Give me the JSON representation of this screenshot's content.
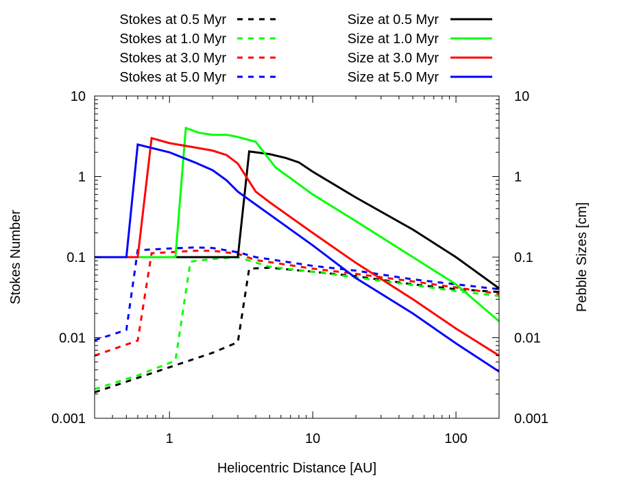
{
  "chart_data": {
    "type": "line",
    "title": "",
    "xlabel": "Heliocentric Distance [AU]",
    "ylabel": "Stokes Number",
    "y2label": "Pebble Sizes [cm]",
    "xscale": "log",
    "yscale": "log",
    "xlim": [
      0.3,
      200
    ],
    "ylim": [
      0.001,
      10
    ],
    "grid": false,
    "legend_position": "top",
    "x_ticks": [
      {
        "value": 1,
        "label": "1"
      },
      {
        "value": 10,
        "label": "10"
      },
      {
        "value": 100,
        "label": "100"
      }
    ],
    "y_ticks": [
      {
        "value": 0.001,
        "label": "0.001"
      },
      {
        "value": 0.01,
        "label": "0.01"
      },
      {
        "value": 0.1,
        "label": "0.1"
      },
      {
        "value": 1,
        "label": "1"
      },
      {
        "value": 10,
        "label": "10"
      }
    ],
    "series": [
      {
        "name": "Stokes at 0.5 Myr",
        "color": "#000000",
        "dash": true,
        "points": [
          [
            0.3,
            0.0021
          ],
          [
            1,
            0.0043
          ],
          [
            2,
            0.0065
          ],
          [
            3,
            0.0088
          ],
          [
            3.6,
            0.072
          ],
          [
            5,
            0.074
          ],
          [
            10,
            0.066
          ],
          [
            20,
            0.058
          ],
          [
            50,
            0.046
          ],
          [
            100,
            0.04
          ],
          [
            200,
            0.037
          ]
        ]
      },
      {
        "name": "Stokes at 1.0 Myr",
        "color": "#00ff00",
        "dash": true,
        "points": [
          [
            0.3,
            0.0023
          ],
          [
            0.6,
            0.0034
          ],
          [
            1.1,
            0.0052
          ],
          [
            1.4,
            0.088
          ],
          [
            2,
            0.095
          ],
          [
            3,
            0.1
          ],
          [
            5,
            0.076
          ],
          [
            10,
            0.066
          ],
          [
            20,
            0.056
          ],
          [
            50,
            0.045
          ],
          [
            100,
            0.038
          ],
          [
            200,
            0.033
          ]
        ]
      },
      {
        "name": "Stokes at 3.0 Myr",
        "color": "#ff0000",
        "dash": true,
        "points": [
          [
            0.3,
            0.006
          ],
          [
            0.6,
            0.0092
          ],
          [
            0.75,
            0.112
          ],
          [
            1,
            0.115
          ],
          [
            1.5,
            0.12
          ],
          [
            2,
            0.12
          ],
          [
            3,
            0.11
          ],
          [
            4,
            0.092
          ],
          [
            10,
            0.072
          ],
          [
            20,
            0.062
          ],
          [
            50,
            0.05
          ],
          [
            100,
            0.042
          ],
          [
            200,
            0.035
          ]
        ]
      },
      {
        "name": "Stokes at 5.0 Myr",
        "color": "#0000ff",
        "dash": true,
        "points": [
          [
            0.3,
            0.0093
          ],
          [
            0.5,
            0.0125
          ],
          [
            0.6,
            0.122
          ],
          [
            1,
            0.128
          ],
          [
            1.5,
            0.132
          ],
          [
            2,
            0.13
          ],
          [
            3,
            0.115
          ],
          [
            4,
            0.1
          ],
          [
            10,
            0.078
          ],
          [
            20,
            0.068
          ],
          [
            50,
            0.053
          ],
          [
            100,
            0.046
          ],
          [
            200,
            0.04
          ]
        ]
      },
      {
        "name": "Size at 0.5 Myr",
        "color": "#000000",
        "dash": false,
        "points": [
          [
            0.3,
            0.1
          ],
          [
            3,
            0.1
          ],
          [
            3.6,
            2.05
          ],
          [
            5,
            1.9
          ],
          [
            6.5,
            1.7
          ],
          [
            8,
            1.5
          ],
          [
            10,
            1.15
          ],
          [
            20,
            0.55
          ],
          [
            50,
            0.22
          ],
          [
            100,
            0.1
          ],
          [
            200,
            0.041
          ]
        ]
      },
      {
        "name": "Size at 1.0 Myr",
        "color": "#00ff00",
        "dash": false,
        "points": [
          [
            0.3,
            0.1
          ],
          [
            1.1,
            0.1
          ],
          [
            1.3,
            4.0
          ],
          [
            1.6,
            3.5
          ],
          [
            2,
            3.3
          ],
          [
            2.5,
            3.3
          ],
          [
            3,
            3.1
          ],
          [
            4,
            2.7
          ],
          [
            5.5,
            1.3
          ],
          [
            10,
            0.6
          ],
          [
            20,
            0.28
          ],
          [
            50,
            0.1
          ],
          [
            100,
            0.046
          ],
          [
            200,
            0.016
          ]
        ]
      },
      {
        "name": "Size at 3.0 Myr",
        "color": "#ff0000",
        "dash": false,
        "points": [
          [
            0.3,
            0.1
          ],
          [
            0.6,
            0.1
          ],
          [
            0.75,
            3.0
          ],
          [
            1,
            2.6
          ],
          [
            1.5,
            2.3
          ],
          [
            2,
            2.1
          ],
          [
            2.5,
            1.85
          ],
          [
            3,
            1.45
          ],
          [
            4,
            0.65
          ],
          [
            5,
            0.48
          ],
          [
            10,
            0.2
          ],
          [
            20,
            0.085
          ],
          [
            50,
            0.03
          ],
          [
            100,
            0.013
          ],
          [
            200,
            0.006
          ]
        ]
      },
      {
        "name": "Size at 5.0 Myr",
        "color": "#0000ff",
        "dash": false,
        "points": [
          [
            0.3,
            0.1
          ],
          [
            0.5,
            0.1
          ],
          [
            0.6,
            2.5
          ],
          [
            1,
            2.0
          ],
          [
            1.5,
            1.5
          ],
          [
            2,
            1.2
          ],
          [
            2.5,
            0.9
          ],
          [
            3,
            0.65
          ],
          [
            4,
            0.45
          ],
          [
            10,
            0.14
          ],
          [
            20,
            0.055
          ],
          [
            50,
            0.02
          ],
          [
            100,
            0.0085
          ],
          [
            200,
            0.0038
          ]
        ]
      }
    ]
  }
}
